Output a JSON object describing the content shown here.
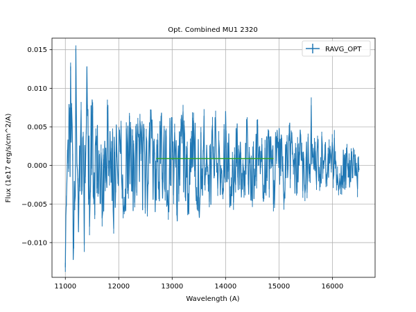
{
  "chart_data": {
    "type": "line",
    "title": "Opt. Combined MU1 2320",
    "xlabel": "Wavelength (A)",
    "ylabel": "Flux (1e17 erg/s/cm^2/A)",
    "xlim": [
      10750,
      16800
    ],
    "ylim": [
      -0.0145,
      0.0165
    ],
    "x_ticks": [
      11000,
      12000,
      13000,
      14000,
      15000,
      16000
    ],
    "y_ticks": [
      -0.01,
      -0.005,
      0.0,
      0.005,
      0.01,
      0.015
    ],
    "x_tick_labels": [
      "11000",
      "12000",
      "13000",
      "14000",
      "15000",
      "16000"
    ],
    "y_tick_labels": [
      "−0.010",
      "−0.005",
      "0.000",
      "0.005",
      "0.010",
      "0.015"
    ],
    "grid": true,
    "legend_position": "upper right",
    "colors": {
      "series": "#1f77b4",
      "fit": "#2ca02c",
      "grid": "#b0b0b0"
    },
    "series": [
      {
        "name": "RAVG_OPT",
        "style": "line-with-errorbars",
        "x_range": [
          11000,
          16500
        ],
        "samples": 560,
        "x_anchors": [
          11000,
          11050,
          11100,
          11150,
          11200,
          11250,
          11300,
          11350,
          11400,
          11450,
          11500,
          11550,
          11600,
          11700,
          11800,
          11900,
          12000,
          12100,
          12200,
          12300,
          12400,
          12500,
          12600,
          12700,
          12800,
          12900,
          13000,
          13100,
          13200,
          13300,
          13400,
          13500,
          13600,
          13700,
          13800,
          13900,
          14000,
          14100,
          14200,
          14300,
          14400,
          14500,
          14600,
          14700,
          14800,
          14900,
          15000,
          15100,
          15200,
          15300,
          15400,
          15500,
          15600,
          15700,
          15800,
          15900,
          16000,
          16100,
          16200,
          16300,
          16400,
          16500
        ],
        "y_anchors": [
          -0.0132,
          0.0033,
          0.0128,
          -0.0122,
          0.0151,
          -0.0086,
          0.0072,
          -0.0103,
          0.0128,
          -0.0079,
          0.0085,
          -0.0064,
          0.0052,
          -0.0061,
          0.0078,
          -0.0058,
          0.0041,
          -0.0052,
          0.0064,
          -0.0048,
          0.0058,
          -0.0055,
          0.0072,
          -0.0045,
          0.0068,
          -0.0053,
          0.0062,
          -0.0072,
          0.007,
          -0.0044,
          0.0058,
          -0.0055,
          0.0064,
          -0.0047,
          0.0062,
          -0.0038,
          0.007,
          -0.0052,
          0.0048,
          -0.0041,
          0.0058,
          -0.0046,
          0.0052,
          -0.0033,
          0.0041,
          -0.005,
          0.0048,
          -0.0038,
          0.0055,
          -0.0036,
          0.0046,
          -0.003,
          0.0078,
          -0.0025,
          0.0038,
          -0.0018,
          0.003,
          -0.0012,
          0.002,
          -0.0015,
          0.0012,
          -0.0006
        ]
      },
      {
        "style": "flat-line",
        "x": [
          12700,
          14900
        ],
        "y": [
          0.0009,
          0.0009
        ]
      }
    ]
  }
}
